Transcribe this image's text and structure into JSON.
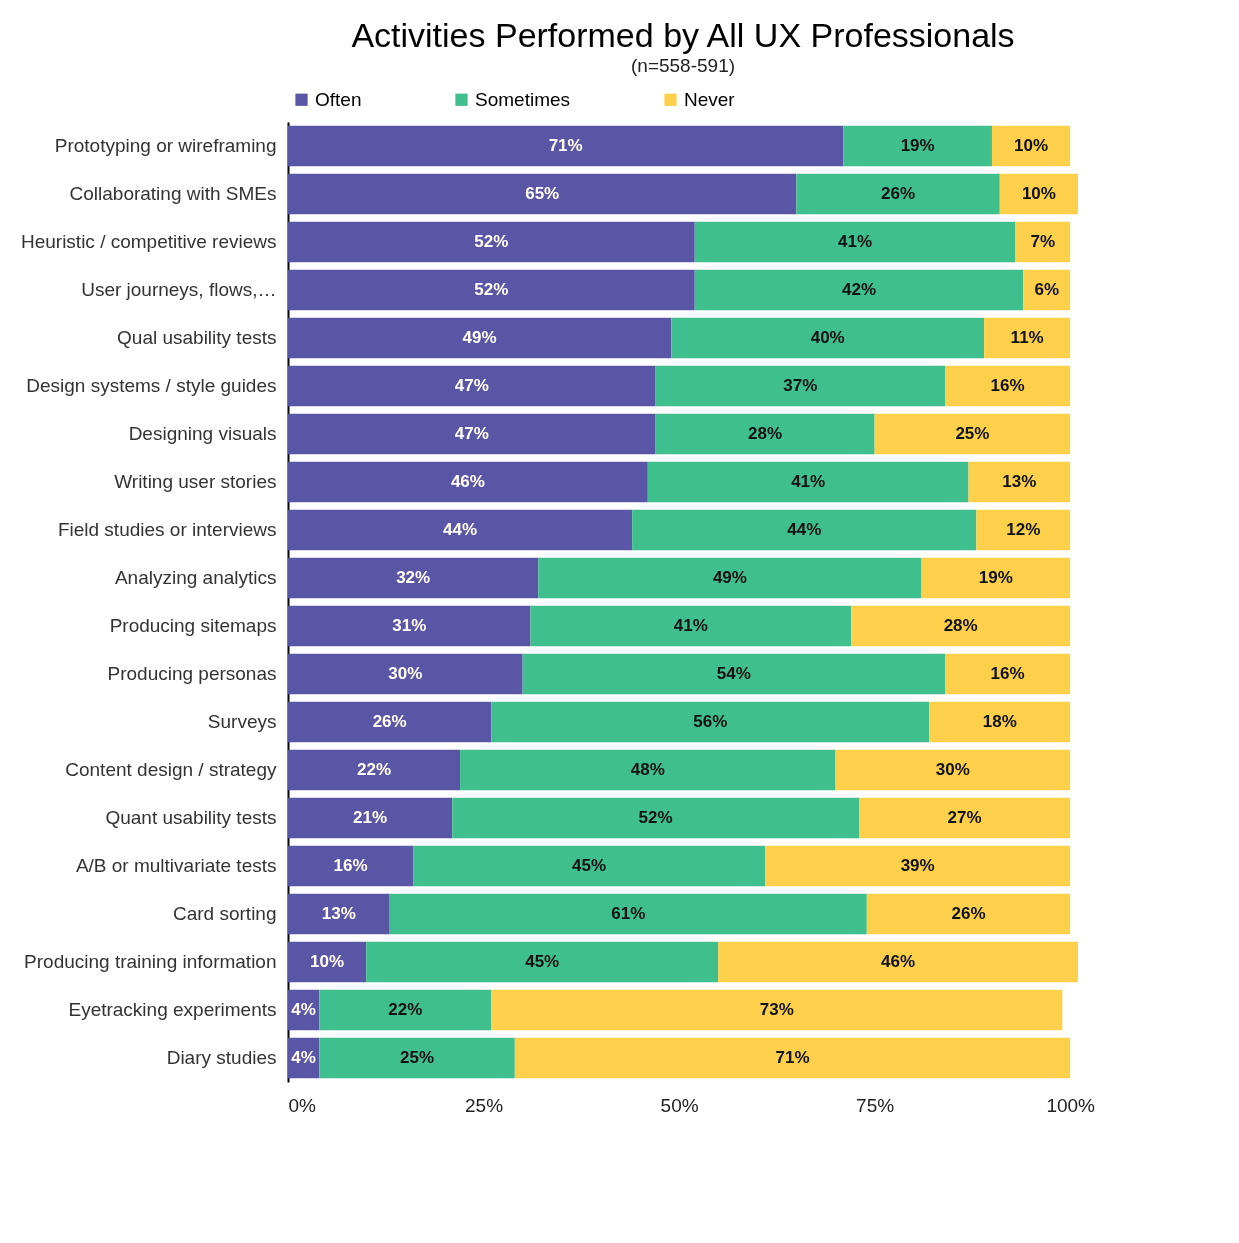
{
  "chart_data": {
    "type": "bar",
    "orientation": "horizontal",
    "stacked": true,
    "title": "Activities Performed by All UX Professionals",
    "subtitle": "(n=558-591)",
    "categories": [
      "Prototyping or wireframing",
      "Collaborating with SMEs",
      "Heuristic / competitive reviews",
      "User journeys, flows,…",
      "Qual usability tests",
      "Design systems / style guides",
      "Designing visuals",
      "Writing user stories",
      "Field studies or interviews",
      "Analyzing analytics",
      "Producing sitemaps",
      "Producing personas",
      "Surveys",
      "Content design / strategy",
      "Quant usability tests",
      "A/B or multivariate tests",
      "Card sorting",
      "Producing training information",
      "Eyetracking experiments",
      "Diary studies"
    ],
    "series": [
      {
        "name": "Often",
        "color": "#5a56a5",
        "values": [
          71,
          65,
          52,
          52,
          49,
          47,
          47,
          46,
          44,
          32,
          31,
          30,
          26,
          22,
          21,
          16,
          13,
          10,
          4,
          4
        ],
        "value_labels": [
          "71%",
          "65%",
          "52%",
          "52%",
          "49%",
          "47%",
          "47%",
          "46%",
          "44%",
          "32%",
          "31%",
          "30%",
          "26%",
          "22%",
          "21%",
          "16%",
          "13%",
          "10%",
          "4%",
          "4%"
        ]
      },
      {
        "name": "Sometimes",
        "color": "#40bf8e",
        "values": [
          19,
          26,
          41,
          42,
          40,
          37,
          28,
          41,
          44,
          49,
          41,
          54,
          56,
          48,
          52,
          45,
          61,
          45,
          22,
          25
        ],
        "value_labels": [
          "19%",
          "26%",
          "41%",
          "42%",
          "40%",
          "37%",
          "28%",
          "41%",
          "44%",
          "49%",
          "41%",
          "54%",
          "56%",
          "48%",
          "52%",
          "45%",
          "61%",
          "45%",
          "22%",
          "25%"
        ]
      },
      {
        "name": "Never",
        "color": "#fdd04b",
        "values": [
          10,
          10,
          7,
          6,
          11,
          16,
          25,
          13,
          12,
          19,
          28,
          16,
          18,
          30,
          27,
          39,
          26,
          46,
          73,
          71
        ],
        "value_labels": [
          "10%",
          "10%",
          "7%",
          "6%",
          "11%",
          "16%",
          "25%",
          "13%",
          "12%",
          "19%",
          "28%",
          "16%",
          "18%",
          "30%",
          "27%",
          "39%",
          "26%",
          "46%",
          "73%",
          "71%"
        ]
      }
    ],
    "xlim": [
      0,
      101
    ],
    "xticks": [
      {
        "value": 0,
        "label": "0%"
      },
      {
        "value": 25,
        "label": "25%"
      },
      {
        "value": 50,
        "label": "50%"
      },
      {
        "value": 75,
        "label": "75%"
      },
      {
        "value": 100,
        "label": "100%"
      }
    ],
    "legend": "top",
    "grid": false
  }
}
